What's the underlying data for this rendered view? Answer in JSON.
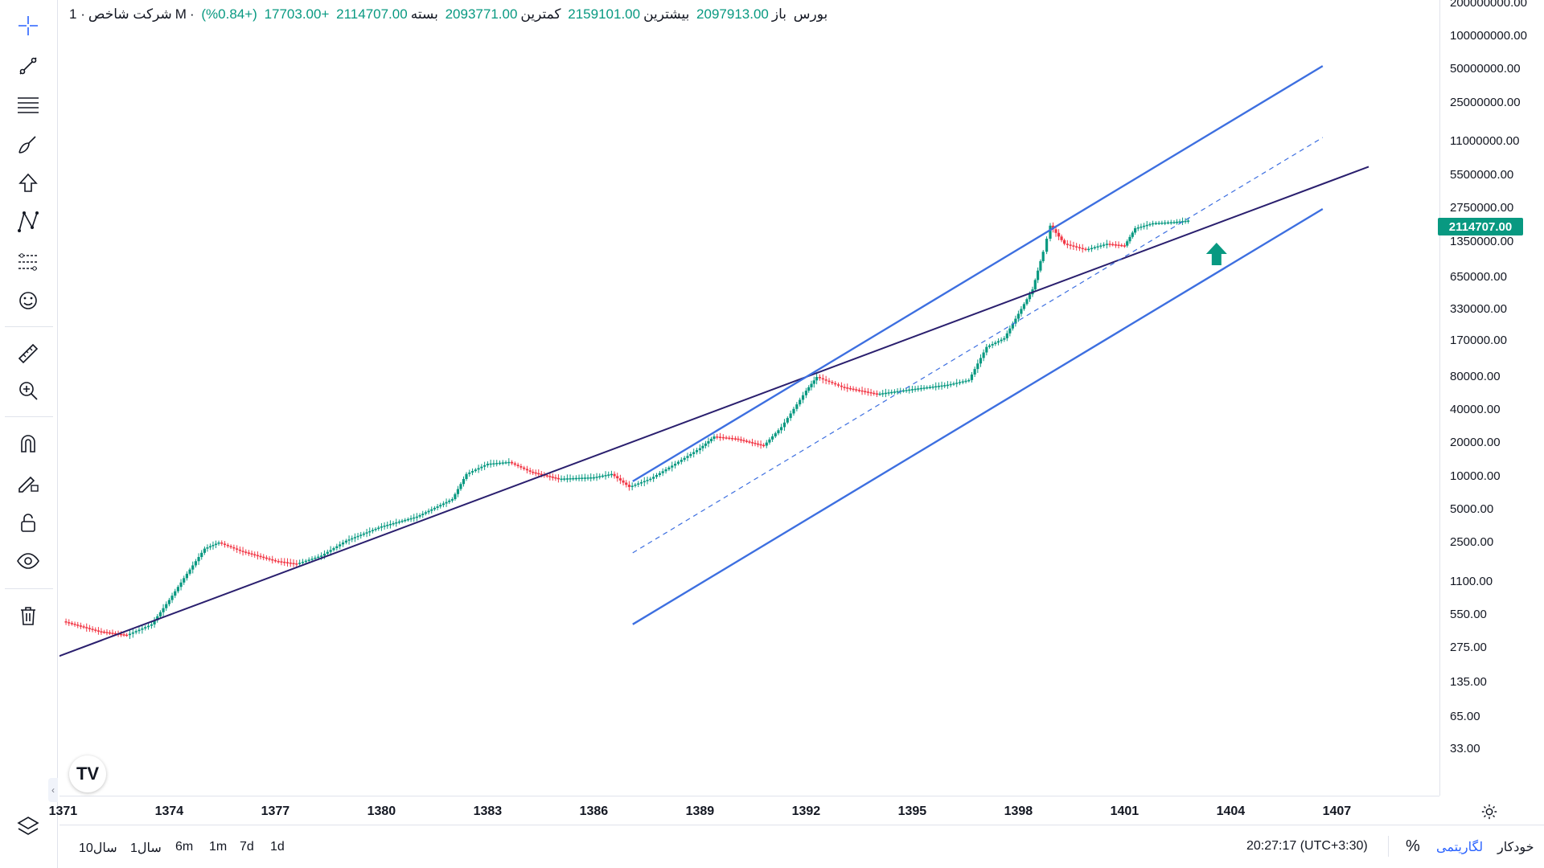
{
  "legend": {
    "symbol": "شرکت شاخص",
    "interval": "1M",
    "exchange": "بورس",
    "open_label": "باز",
    "open": "2097913.00",
    "high_label": "بیشترین",
    "high": "2159101.00",
    "low_label": "کمترین",
    "low": "2093771.00",
    "close_label": "بسته",
    "close": "2114707.00",
    "change": "+17703.00",
    "change_pct": "(+0.84%)"
  },
  "price_badge": "2114707.00",
  "colors": {
    "up": "#089981",
    "down": "#f23645",
    "channel": "#3d6fe0",
    "trendline": "#2a1f6e",
    "arrow": "#089981",
    "accent": "#2962ff"
  },
  "toolbar": {
    "tools": [
      "crosshair-icon",
      "trendline-icon",
      "fib-icon",
      "brush-icon",
      "shape-icon",
      "pattern-icon",
      "forecast-icon",
      "emoji-icon",
      "ruler-icon",
      "zoom-in-icon",
      "magnet-icon",
      "lock-drawing-icon",
      "unlock-icon",
      "eye-icon",
      "trash-icon",
      "layers-icon"
    ]
  },
  "time_axis": {
    "labels": [
      "1371",
      "1374",
      "1377",
      "1380",
      "1383",
      "1386",
      "1389",
      "1392",
      "1395",
      "1398",
      "1401",
      "1404",
      "1407"
    ]
  },
  "bottom_bar": {
    "ranges": [
      "10سال",
      "1سال",
      "6m",
      "1m",
      "7d",
      "1d"
    ],
    "clock": "20:27:17 (UTC+3:30)",
    "percent": "%",
    "log": "لگاریتمی",
    "auto": "خودکار"
  },
  "logo_text": "TV",
  "chart_data": {
    "type": "candlestick",
    "scale": "log",
    "interval": "1M",
    "ylim": [
      20,
      200000000
    ],
    "y_ticks": [
      "200000000.00",
      "100000000.00",
      "50000000.00",
      "25000000.00",
      "11000000.00",
      "5500000.00",
      "2750000.00",
      "1350000.00",
      "650000.00",
      "330000.00",
      "170000.00",
      "80000.00",
      "40000.00",
      "20000.00",
      "10000.00",
      "5000.00",
      "2500.00",
      "1100.00",
      "550.00",
      "275.00",
      "135.00",
      "65.00",
      "33.00"
    ],
    "x_ticks": [
      "1371",
      "1374",
      "1377",
      "1380",
      "1383",
      "1386",
      "1389",
      "1392",
      "1395",
      "1398",
      "1401",
      "1404",
      "1407"
    ],
    "xlim": [
      1370.9,
      1409.9
    ],
    "series": [
      {
        "x": 1371.0,
        "close": 480
      },
      {
        "x": 1372.0,
        "close": 390
      },
      {
        "x": 1372.8,
        "close": 360
      },
      {
        "x": 1373.5,
        "close": 450
      },
      {
        "x": 1374.0,
        "close": 750
      },
      {
        "x": 1374.5,
        "close": 1300
      },
      {
        "x": 1375.0,
        "close": 2200
      },
      {
        "x": 1375.4,
        "close": 2500
      },
      {
        "x": 1376.0,
        "close": 2100
      },
      {
        "x": 1377.0,
        "close": 1700
      },
      {
        "x": 1377.6,
        "close": 1600
      },
      {
        "x": 1378.3,
        "close": 1900
      },
      {
        "x": 1379.0,
        "close": 2600
      },
      {
        "x": 1380.0,
        "close": 3500
      },
      {
        "x": 1381.0,
        "close": 4300
      },
      {
        "x": 1382.0,
        "close": 6200
      },
      {
        "x": 1382.4,
        "close": 10500
      },
      {
        "x": 1383.0,
        "close": 13000
      },
      {
        "x": 1383.6,
        "close": 13500
      },
      {
        "x": 1384.2,
        "close": 11000
      },
      {
        "x": 1385.0,
        "close": 9500
      },
      {
        "x": 1386.0,
        "close": 9800
      },
      {
        "x": 1386.5,
        "close": 10500
      },
      {
        "x": 1387.0,
        "close": 8000
      },
      {
        "x": 1387.6,
        "close": 9500
      },
      {
        "x": 1388.3,
        "close": 13000
      },
      {
        "x": 1389.0,
        "close": 18000
      },
      {
        "x": 1389.4,
        "close": 23000
      },
      {
        "x": 1390.0,
        "close": 22000
      },
      {
        "x": 1390.8,
        "close": 19000
      },
      {
        "x": 1391.3,
        "close": 28000
      },
      {
        "x": 1392.0,
        "close": 60000
      },
      {
        "x": 1392.3,
        "close": 80000
      },
      {
        "x": 1393.0,
        "close": 65000
      },
      {
        "x": 1394.0,
        "close": 56000
      },
      {
        "x": 1395.0,
        "close": 62000
      },
      {
        "x": 1396.0,
        "close": 68000
      },
      {
        "x": 1396.6,
        "close": 75000
      },
      {
        "x": 1397.1,
        "close": 150000
      },
      {
        "x": 1397.6,
        "close": 180000
      },
      {
        "x": 1398.0,
        "close": 300000
      },
      {
        "x": 1398.4,
        "close": 500000
      },
      {
        "x": 1398.7,
        "close": 1100000
      },
      {
        "x": 1398.9,
        "close": 1900000
      },
      {
        "x": 1399.3,
        "close": 1300000
      },
      {
        "x": 1399.9,
        "close": 1150000
      },
      {
        "x": 1400.5,
        "close": 1300000
      },
      {
        "x": 1401.0,
        "close": 1250000
      },
      {
        "x": 1401.3,
        "close": 1800000
      },
      {
        "x": 1401.8,
        "close": 2000000
      },
      {
        "x": 1402.4,
        "close": 2050000
      },
      {
        "x": 1402.8,
        "close": 2114707
      }
    ]
  }
}
